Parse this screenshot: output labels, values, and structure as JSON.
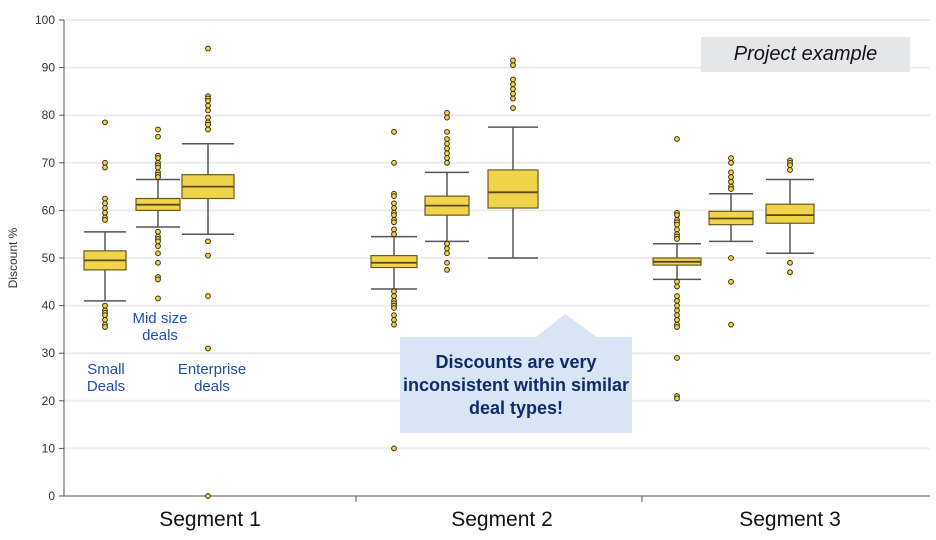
{
  "chart_data": {
    "type": "boxplot",
    "ylabel": "Discount %",
    "ylim": [
      0,
      100
    ],
    "yticks": [
      0,
      10,
      20,
      30,
      40,
      50,
      60,
      70,
      80,
      90,
      100
    ],
    "grid": true,
    "categories": [
      "Segment 1",
      "Segment 2",
      "Segment 3"
    ],
    "box_color": "#f0d44c",
    "groups": [
      {
        "segment": "Segment 1",
        "boxes": [
          {
            "whisker_low": 41,
            "q1": 47.5,
            "median": 49.5,
            "q3": 51.5,
            "whisker_high": 55.5,
            "outliers": [
              78.5,
              70,
              69,
              62.5,
              61.5,
              60.5,
              59.5,
              58.5,
              58,
              40,
              39,
              38.5,
              38,
              37,
              36,
              35.5
            ]
          },
          {
            "whisker_low": 56.5,
            "q1": 60,
            "median": 61.2,
            "q3": 62.5,
            "whisker_high": 66.5,
            "outliers": [
              77,
              75.5,
              71.5,
              71,
              70,
              69.5,
              69,
              68,
              67.5,
              67,
              55.5,
              54.5,
              54,
              53.5,
              52.5,
              51,
              49,
              46,
              45.5,
              41.5
            ]
          },
          {
            "whisker_low": 55,
            "q1": 62.5,
            "median": 65,
            "q3": 67.5,
            "whisker_high": 74,
            "outliers": [
              94,
              84,
              83.5,
              83,
              82,
              81,
              79.5,
              78.5,
              78,
              77,
              53.5,
              50.5,
              42,
              31,
              0
            ]
          }
        ]
      },
      {
        "segment": "Segment 2",
        "boxes": [
          {
            "whisker_low": 43.5,
            "q1": 48,
            "median": 49,
            "q3": 50.5,
            "whisker_high": 54.5,
            "outliers": [
              76.5,
              70,
              63.5,
              63,
              61.5,
              60.5,
              59.5,
              59,
              58,
              57.5,
              56,
              55,
              43,
              42,
              41,
              40.5,
              40,
              39.5,
              38,
              37,
              36,
              10
            ]
          },
          {
            "whisker_low": 53.5,
            "q1": 59,
            "median": 61,
            "q3": 63,
            "whisker_high": 68,
            "outliers": [
              80.5,
              79.5,
              76.5,
              75,
              74,
              73,
              72,
              71,
              70,
              53,
              52,
              51,
              49,
              47.5
            ]
          },
          {
            "whisker_low": 50,
            "q1": 60.5,
            "median": 63.8,
            "q3": 68.5,
            "whisker_high": 77.5,
            "outliers": [
              91.5,
              90.5,
              87.5,
              86.5,
              85.5,
              84.5,
              83.5,
              81.5
            ]
          }
        ]
      },
      {
        "segment": "Segment 3",
        "boxes": [
          {
            "whisker_low": 45.5,
            "q1": 48.5,
            "median": 49.2,
            "q3": 50,
            "whisker_high": 53,
            "outliers": [
              75,
              59.5,
              59,
              58,
              57.5,
              57,
              56,
              55,
              54.5,
              54,
              45,
              44,
              42,
              41,
              40,
              39,
              38,
              37,
              36,
              35.5,
              29,
              21,
              20.5
            ]
          },
          {
            "whisker_low": 53.5,
            "q1": 57,
            "median": 58.3,
            "q3": 59.8,
            "whisker_high": 63.5,
            "outliers": [
              71,
              70,
              68,
              67,
              66,
              65,
              64.5,
              50,
              45,
              36
            ]
          },
          {
            "whisker_low": 51,
            "q1": 57.3,
            "median": 59,
            "q3": 61.3,
            "whisker_high": 66.5,
            "outliers": [
              70.5,
              70,
              69.5,
              68.5,
              49,
              47
            ]
          }
        ]
      }
    ],
    "annotations": {
      "small": "Small\nDeals",
      "mid": "Mid size\ndeals",
      "enterprise": "Enterprise\ndeals",
      "callout": "Discounts are very inconsistent within similar deal types!",
      "badge": "Project example"
    }
  }
}
